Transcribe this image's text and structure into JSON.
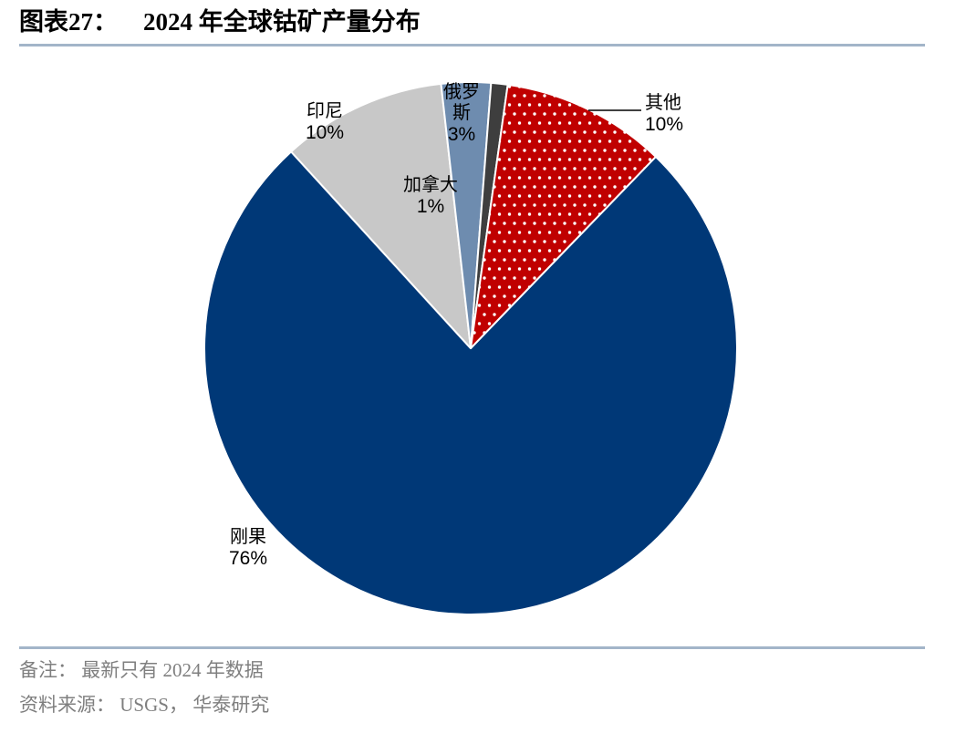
{
  "header": {
    "label": "图表27：",
    "title": "2024 年全球钴矿产量分布",
    "rule_color": "#a3b5c9"
  },
  "chart_data": {
    "type": "pie",
    "title": "2024 年全球钴矿产量分布",
    "unit": "percent",
    "start_angle_deg": 44,
    "legend_position": "none",
    "border_color": "#ffffff",
    "slices": [
      {
        "label": "刚果",
        "value": 76,
        "display": "76%",
        "color": "#003877",
        "pattern": "solid"
      },
      {
        "label": "印尼",
        "value": 10,
        "display": "10%",
        "color": "#c8c8c8",
        "pattern": "solid"
      },
      {
        "label": "俄罗斯",
        "value": 3,
        "display": "3%",
        "color": "#6e8caf",
        "pattern": "solid"
      },
      {
        "label": "加拿大",
        "value": 1,
        "display": "1%",
        "color": "#3e3e3e",
        "pattern": "solid"
      },
      {
        "label": "其他",
        "value": 10,
        "display": "10%",
        "color": "#c00000",
        "pattern": "white-dots"
      }
    ]
  },
  "footer": {
    "note": "备注： 最新只有 2024 年数据",
    "source": "资料来源： USGS， 华泰研究"
  }
}
